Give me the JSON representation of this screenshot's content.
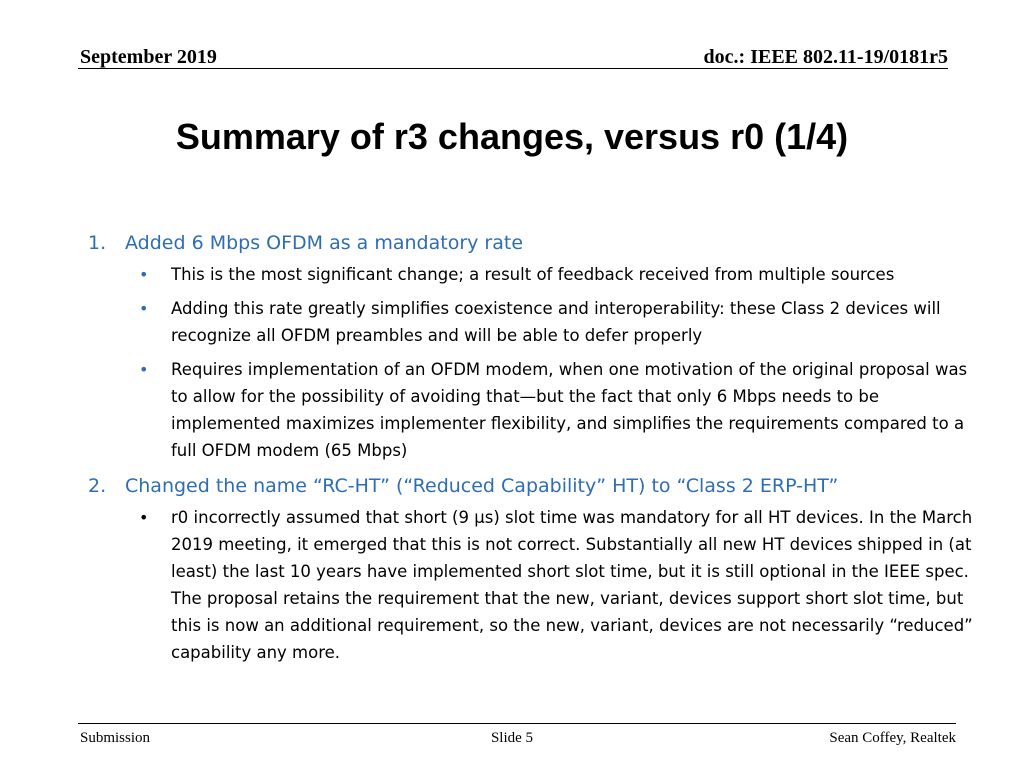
{
  "header": {
    "date": "September 2019",
    "doc": "doc.: IEEE 802.11-19/0181r5"
  },
  "title": "Summary of r3 changes, versus r0 (1/4)",
  "items": [
    {
      "number": "1.",
      "text": "Added 6 Mbps OFDM as a mandatory rate",
      "bullets": [
        "This is the most significant change; a result of feedback received from multiple sources",
        "Adding this rate greatly simplifies coexistence and interoperability: these Class 2 devices will recognize all OFDM preambles and will be able to defer properly",
        "Requires implementation of an OFDM modem, when one motivation of the original proposal was to allow for the possibility of avoiding that—but the fact that only 6 Mbps needs to be implemented maximizes implementer flexibility, and simplifies the requirements compared to a full OFDM modem (65 Mbps)"
      ]
    },
    {
      "number": "2.",
      "text": "Changed the name “RC-HT” (“Reduced Capability” HT) to “Class 2 ERP-HT”",
      "bullets": [
        "r0 incorrectly assumed that short (9 µs) slot time was mandatory for all HT devices. In the March 2019 meeting, it emerged that this is not correct. Substantially all new HT devices shipped in (at least) the last 10 years have implemented short slot time, but it is still optional in the IEEE spec. The proposal retains the requirement that the new, variant, devices support short slot time, but this is now an additional requirement, so the new, variant, devices are not necessarily “reduced” capability any more."
      ]
    }
  ],
  "bullet_glyph": "•",
  "footer": {
    "left": "Submission",
    "center": "Slide 5",
    "right": "Sean Coffey, Realtek"
  },
  "colors": {
    "accent": "#2e6db4",
    "text": "#000000"
  }
}
